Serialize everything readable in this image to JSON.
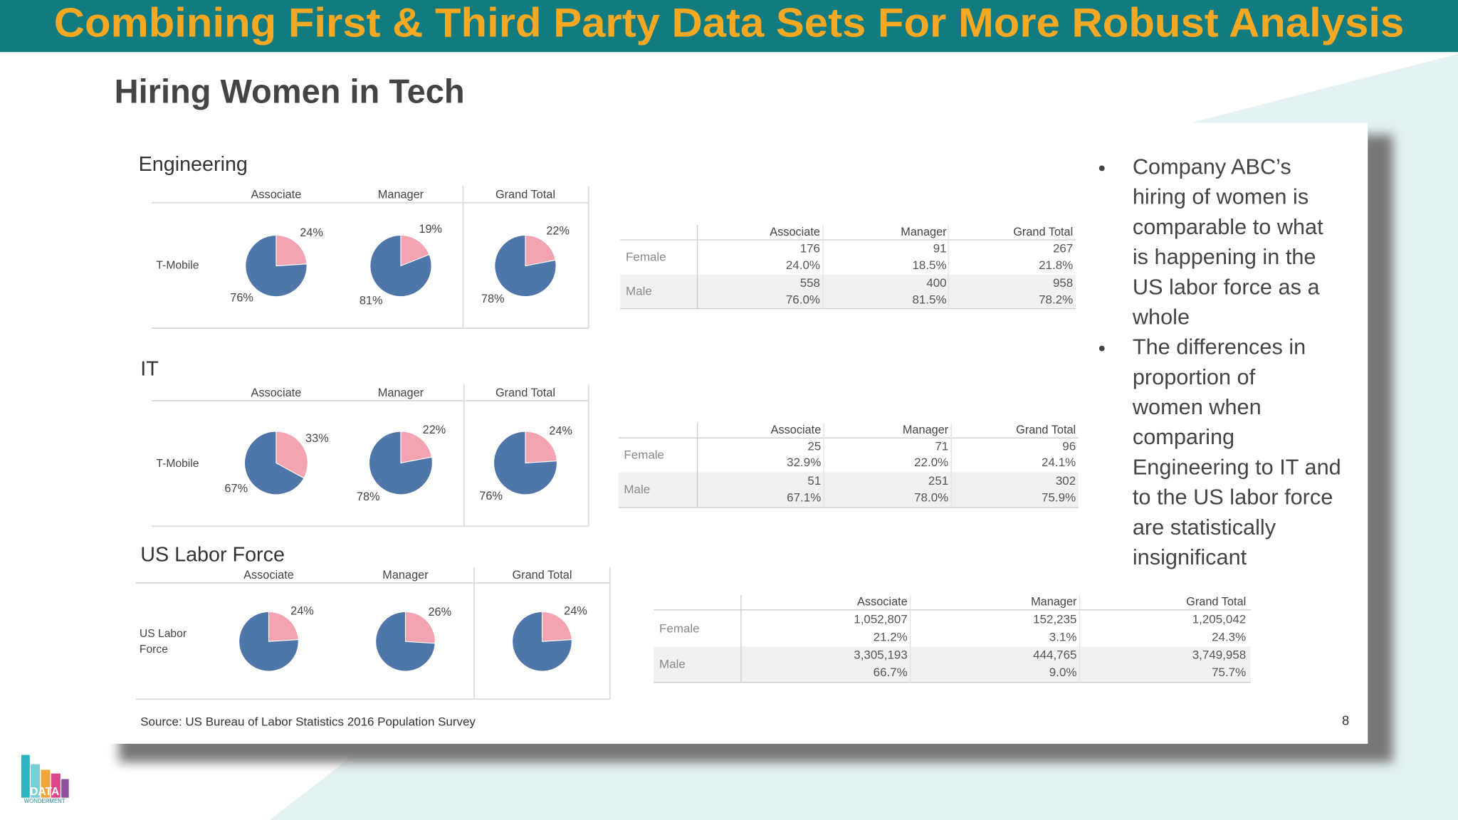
{
  "header": {
    "title": "Combining First & Third Party Data Sets For More Robust Analysis",
    "subtitle": "Hiring Women in Tech"
  },
  "sections": [
    {
      "title": "Engineering",
      "row_label": [
        "T-Mobile"
      ],
      "columns": [
        "Associate",
        "Manager",
        "Grand Total"
      ],
      "pies": [
        {
          "female": 24,
          "female_label": "24%",
          "male": 76,
          "male_label": "76%"
        },
        {
          "female": 19,
          "female_label": "19%",
          "male": 81,
          "male_label": "81%"
        },
        {
          "female": 22,
          "female_label": "22%",
          "male": 78,
          "male_label": "78%"
        }
      ],
      "table": {
        "columns": [
          "Associate",
          "Manager",
          "Grand Total"
        ],
        "rows": [
          {
            "label": "Female",
            "cells": [
              [
                "176",
                "24.0%"
              ],
              [
                "91",
                "18.5%"
              ],
              [
                "267",
                "21.8%"
              ]
            ]
          },
          {
            "label": "Male",
            "cells": [
              [
                "558",
                "76.0%"
              ],
              [
                "400",
                "81.5%"
              ],
              [
                "958",
                "78.2%"
              ]
            ]
          }
        ]
      }
    },
    {
      "title": "IT",
      "row_label": [
        "T-Mobile"
      ],
      "columns": [
        "Associate",
        "Manager",
        "Grand Total"
      ],
      "pies": [
        {
          "female": 33,
          "female_label": "33%",
          "male": 67,
          "male_label": "67%"
        },
        {
          "female": 22,
          "female_label": "22%",
          "male": 78,
          "male_label": "78%"
        },
        {
          "female": 24,
          "female_label": "24%",
          "male": 76,
          "male_label": "76%"
        }
      ],
      "table": {
        "columns": [
          "Associate",
          "Manager",
          "Grand Total"
        ],
        "rows": [
          {
            "label": "Female",
            "cells": [
              [
                "25",
                "32.9%"
              ],
              [
                "71",
                "22.0%"
              ],
              [
                "96",
                "24.1%"
              ]
            ]
          },
          {
            "label": "Male",
            "cells": [
              [
                "51",
                "67.1%"
              ],
              [
                "251",
                "78.0%"
              ],
              [
                "302",
                "75.9%"
              ]
            ]
          }
        ]
      }
    },
    {
      "title": "US Labor Force",
      "row_label": [
        "US Labor",
        "Force"
      ],
      "columns": [
        "Associate",
        "Manager",
        "Grand Total"
      ],
      "pies": [
        {
          "female": 24,
          "female_label": "24%",
          "male": 76
        },
        {
          "female": 26,
          "female_label": "26%",
          "male": 74
        },
        {
          "female": 24,
          "female_label": "24%",
          "male": 76
        }
      ],
      "table": {
        "columns": [
          "Associate",
          "Manager",
          "Grand Total"
        ],
        "rows": [
          {
            "label": "Female",
            "cells": [
              [
                "1,052,807",
                "21.2%"
              ],
              [
                "152,235",
                "3.1%"
              ],
              [
                "1,205,042",
                "24.3%"
              ]
            ]
          },
          {
            "label": "Male",
            "cells": [
              [
                "3,305,193",
                "66.7%"
              ],
              [
                "444,765",
                "9.0%"
              ],
              [
                "3,749,958",
                "75.7%"
              ]
            ]
          }
        ]
      }
    }
  ],
  "bullets": [
    [
      "Company ABC’s",
      "hiring of women is",
      "comparable to what",
      "is happening in the",
      "US labor force as a",
      "whole"
    ],
    [
      "The differences in",
      "proportion of",
      "women when",
      "comparing",
      "Engineering to IT and",
      "to the US labor force",
      "are statistically",
      "insignificant"
    ]
  ],
  "source": "Source: US Bureau of Labor Statistics 2016 Population Survey",
  "page_number": "8",
  "logo": {
    "name": "DATA",
    "tagline": "WONDERMENT"
  },
  "colors": {
    "female": "#f4a3b0",
    "male": "#4f76a8"
  }
}
